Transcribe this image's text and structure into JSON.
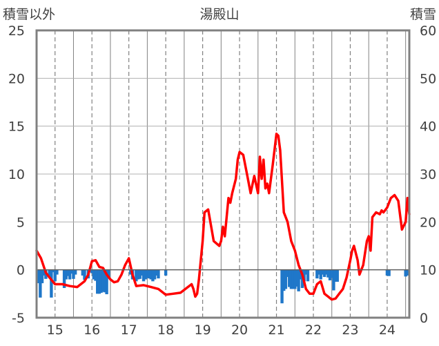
{
  "chart_data": {
    "type": "bar+line",
    "title": "湯殿山",
    "left_axis_label": "積雪以外",
    "right_axis_label": "積雪",
    "left_ylim": [
      -5,
      25
    ],
    "left_ticks": [
      "25",
      "20",
      "15",
      "10",
      "5",
      "0",
      "-5"
    ],
    "right_ylim": [
      0,
      60
    ],
    "right_ticks": [
      "60",
      "50",
      "40",
      "30",
      "20",
      "10",
      "0"
    ],
    "x_range": [
      14.5,
      24.6
    ],
    "x_ticks": [
      "15",
      "16",
      "17",
      "18",
      "19",
      "20",
      "21",
      "22",
      "23",
      "24"
    ],
    "grid": true,
    "colors": {
      "line": "#ff0000",
      "bars": "#1f77c9",
      "grid": "#808080",
      "frame": "#808080"
    },
    "series": [
      {
        "type": "line",
        "axis": "left",
        "x": [
          14.5,
          14.62,
          14.75,
          14.85,
          15.0,
          15.2,
          15.4,
          15.6,
          15.8,
          15.9,
          16.0,
          16.1,
          16.2,
          16.3,
          16.4,
          16.5,
          16.6,
          16.7,
          16.8,
          16.9,
          17.0,
          17.1,
          17.2,
          17.4,
          17.6,
          17.8,
          18.0,
          18.2,
          18.4,
          18.6,
          18.7,
          18.75,
          18.8,
          18.85,
          18.9,
          19.0,
          19.05,
          19.15,
          19.3,
          19.45,
          19.5,
          19.55,
          19.6,
          19.7,
          19.75,
          19.8,
          19.9,
          19.95,
          20.0,
          20.1,
          20.2,
          20.3,
          20.4,
          20.5,
          20.55,
          20.6,
          20.65,
          20.7,
          20.75,
          20.8,
          20.9,
          21.0,
          21.05,
          21.1,
          21.2,
          21.3,
          21.4,
          21.5,
          21.6,
          21.7,
          21.8,
          21.9,
          22.0,
          22.1,
          22.2,
          22.3,
          22.4,
          22.5,
          22.6,
          22.7,
          22.8,
          22.9,
          23.0,
          23.05,
          23.1,
          23.2,
          23.25,
          23.35,
          23.45,
          23.5,
          23.55,
          23.6,
          23.7,
          23.8,
          23.85,
          23.9,
          24.0,
          24.1,
          24.2,
          24.3,
          24.4,
          24.5,
          24.55,
          24.6
        ],
        "y": [
          2.0,
          1.2,
          -0.3,
          -0.8,
          -1.5,
          -1.5,
          -1.7,
          -1.8,
          -1.2,
          -0.5,
          0.9,
          1.0,
          0.3,
          0.2,
          -0.5,
          -1.0,
          -1.3,
          -1.2,
          -0.5,
          0.5,
          1.2,
          -0.5,
          -1.7,
          -1.6,
          -1.8,
          -2.0,
          -2.6,
          -2.5,
          -2.4,
          -1.8,
          -1.5,
          -2.0,
          -2.8,
          -2.5,
          -1.0,
          3.0,
          6.0,
          6.3,
          3.0,
          2.5,
          3.0,
          4.5,
          3.5,
          7.5,
          7.0,
          8.0,
          9.5,
          11.5,
          12.3,
          12.0,
          10.0,
          8.0,
          9.8,
          8.0,
          11.8,
          9.5,
          11.5,
          8.5,
          9.0,
          8.0,
          11.0,
          14.2,
          14.0,
          12.5,
          6.0,
          5.0,
          3.0,
          2.0,
          0.5,
          -0.5,
          -2.0,
          -2.5,
          -2.5,
          -1.5,
          -1.2,
          -2.5,
          -2.8,
          -3.1,
          -3.0,
          -2.5,
          -2.0,
          -0.8,
          1.0,
          2.0,
          2.5,
          1.0,
          -0.5,
          0.5,
          3.0,
          3.5,
          2.0,
          5.5,
          6.0,
          5.8,
          6.2,
          6.0,
          6.5,
          7.5,
          7.8,
          7.2,
          4.2,
          5.0,
          7.5,
          5.8
        ]
      },
      {
        "type": "bar",
        "axis": "right",
        "x": [
          14.55,
          14.6,
          14.65,
          14.7,
          14.75,
          14.8,
          14.85,
          14.9,
          14.95,
          15.0,
          15.05,
          15.25,
          15.3,
          15.35,
          15.4,
          15.45,
          15.5,
          15.55,
          15.75,
          15.8,
          15.9,
          16.0,
          16.05,
          16.1,
          16.15,
          16.2,
          16.25,
          16.3,
          16.35,
          16.4,
          16.45,
          17.05,
          17.1,
          17.2,
          17.25,
          17.3,
          17.35,
          17.4,
          17.45,
          17.5,
          17.55,
          17.6,
          17.65,
          17.7,
          17.75,
          17.8,
          18.0,
          21.15,
          21.2,
          21.25,
          21.3,
          21.35,
          21.4,
          21.45,
          21.5,
          21.55,
          21.6,
          21.65,
          21.7,
          21.75,
          21.8,
          21.85,
          22.1,
          22.15,
          22.2,
          22.25,
          22.3,
          22.35,
          22.4,
          22.45,
          22.5,
          22.55,
          22.6,
          22.65,
          24.0,
          24.05,
          24.5,
          24.55
        ],
        "y": [
          7.2,
          4.2,
          7.2,
          8.8,
          8.1,
          10.0,
          8.3,
          4.2,
          9.5,
          7.6,
          9.0,
          6.2,
          8.0,
          8.7,
          8.0,
          9.2,
          8.1,
          9.0,
          8.8,
          7.9,
          8.2,
          9.3,
          8.0,
          7.7,
          5.0,
          5.0,
          5.2,
          5.4,
          5.3,
          4.9,
          8.5,
          9.0,
          8.0,
          7.6,
          8.0,
          8.1,
          8.8,
          7.6,
          8.0,
          8.3,
          8.2,
          8.0,
          7.6,
          8.0,
          8.8,
          8.2,
          8.8,
          3.0,
          5.6,
          6.0,
          8.5,
          6.4,
          6.0,
          6.0,
          6.0,
          6.5,
          5.5,
          8.0,
          6.2,
          7.6,
          9.0,
          7.6,
          8.2,
          9.0,
          8.0,
          9.0,
          8.5,
          9.0,
          8.4,
          7.8,
          8.3,
          5.7,
          7.5,
          7.5,
          8.8,
          8.7,
          8.6,
          8.8
        ]
      }
    ]
  }
}
